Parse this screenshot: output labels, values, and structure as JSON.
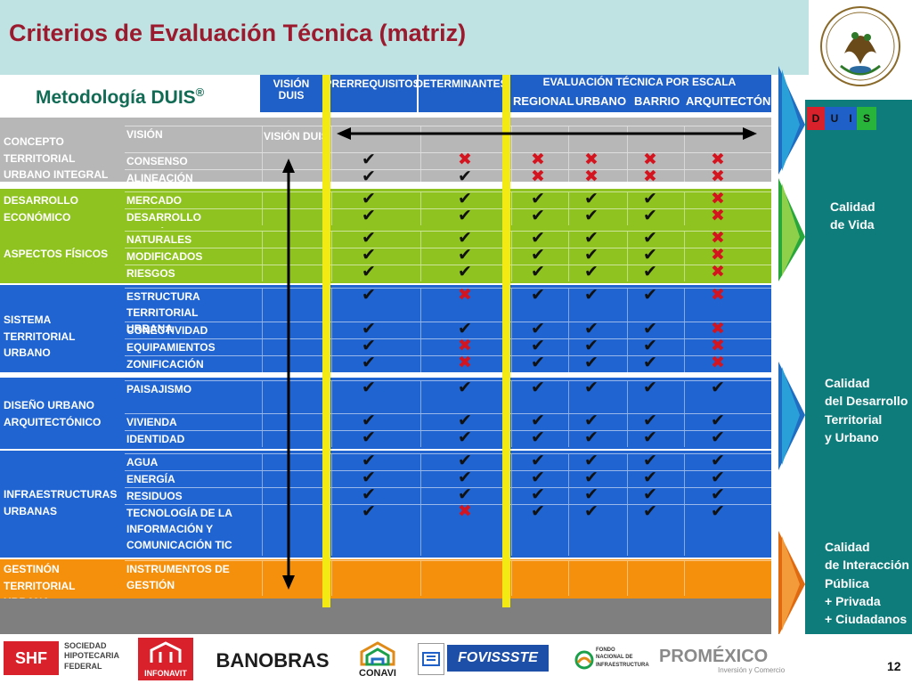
{
  "slide": {
    "title": "Criterios de Evaluación Técnica (matriz)",
    "subtitle_main": "Metodología DUIS",
    "subtitle_mark": "®",
    "page_number": "12"
  },
  "columns": {
    "vision": "VISIÓN DUIS",
    "prerrequisitos": "PRERREQUISITOS",
    "determinantes": "DETERMINANTES",
    "evaluacion": "EVALUACIÓN TÉCNICA POR ESCALA",
    "scales": [
      "REGIONAL",
      "URBANO",
      "BARRIO",
      "ARQUITECTÓNICA"
    ]
  },
  "rows": [
    {
      "category": [
        "CONCEPTO TERRITORIAL",
        "URBANO INTEGRAL"
      ],
      "color": "#b7b7b7",
      "subs": [
        {
          "label": [
            "VISIÓN"
          ],
          "vision_text": "VISIÓN DUIS",
          "marks": []
        },
        {
          "label": [
            "CONSENSO"
          ],
          "marks": [
            "y",
            "n",
            "n",
            "n",
            "n",
            "n"
          ]
        },
        {
          "label": [
            "ALINEACIÓN"
          ],
          "marks": [
            "y",
            "y",
            "n",
            "n",
            "n",
            "n"
          ]
        }
      ]
    },
    {
      "category": [
        "DESARROLLO",
        "ECONÓMICO"
      ],
      "color": "#8fc31f",
      "subs": [
        {
          "label": [
            "MERCADO"
          ],
          "marks": [
            "y",
            "y",
            "y",
            "y",
            "y",
            "n"
          ]
        },
        {
          "label": [
            "DESARROLLO ECONÓMICO"
          ],
          "marks": [
            "y",
            "y",
            "y",
            "y",
            "y",
            "n"
          ]
        }
      ]
    },
    {
      "category": [
        "ASPECTOS FÍSICOS"
      ],
      "color": "#8fc31f",
      "subs": [
        {
          "label": [
            "NATURALES"
          ],
          "marks": [
            "y",
            "y",
            "y",
            "y",
            "y",
            "n"
          ]
        },
        {
          "label": [
            "MODIFICADOS"
          ],
          "marks": [
            "y",
            "y",
            "y",
            "y",
            "y",
            "n"
          ]
        },
        {
          "label": [
            "RIESGOS"
          ],
          "marks": [
            "y",
            "y",
            "y",
            "y",
            "y",
            "n"
          ]
        }
      ]
    },
    {
      "category": [
        "SISTEMA TERRITORIAL",
        "URBANO"
      ],
      "color": "#1f64d0",
      "subs": [
        {
          "label": [
            "ESTRUCTURA TERRITORIAL",
            "URBANA"
          ],
          "marks": [
            "y",
            "n",
            "y",
            "y",
            "y",
            "n"
          ]
        },
        {
          "label": [
            "CONECTIVIDAD"
          ],
          "marks": [
            "y",
            "y",
            "y",
            "y",
            "y",
            "n"
          ]
        },
        {
          "label": [
            "EQUIPAMIENTOS"
          ],
          "marks": [
            "y",
            "n",
            "y",
            "y",
            "y",
            "n"
          ]
        },
        {
          "label": [
            "ZONIFICACIÓN"
          ],
          "marks": [
            "y",
            "n",
            "y",
            "y",
            "y",
            "n"
          ]
        }
      ]
    },
    {
      "category": [
        "DISEÑO URBANO",
        "ARQUITECTÓNICO"
      ],
      "color": "#1f64d0",
      "subs": [
        {
          "label": [
            "PAISAJISMO"
          ],
          "marks": [
            "y",
            "y",
            "y",
            "y",
            "y",
            "y"
          ]
        },
        {
          "label": [
            "VIVIENDA"
          ],
          "marks": [
            "y",
            "y",
            "y",
            "y",
            "y",
            "y"
          ]
        },
        {
          "label": [
            "IDENTIDAD"
          ],
          "marks": [
            "y",
            "y",
            "y",
            "y",
            "y",
            "y"
          ]
        }
      ]
    },
    {
      "category": [
        "INFRAESTRUCTURAS",
        "URBANAS"
      ],
      "color": "#1f64d0",
      "subs": [
        {
          "label": [
            "AGUA"
          ],
          "marks": [
            "y",
            "y",
            "y",
            "y",
            "y",
            "y"
          ]
        },
        {
          "label": [
            "ENERGÍA"
          ],
          "marks": [
            "y",
            "y",
            "y",
            "y",
            "y",
            "y"
          ]
        },
        {
          "label": [
            "RESIDUOS"
          ],
          "marks": [
            "y",
            "y",
            "y",
            "y",
            "y",
            "y"
          ]
        },
        {
          "label": [
            "TECNOLOGÍA DE LA",
            "INFORMACIÓN Y",
            "COMUNICACIÓN TIC"
          ],
          "marks": [
            "y",
            "n",
            "y",
            "y",
            "y",
            "y"
          ]
        }
      ]
    },
    {
      "category": [
        "GESTINÓN TERRITORIAL",
        "URBANA"
      ],
      "color": "#f5900d",
      "subs": [
        {
          "label": [
            "INSTRUMENTOS DE",
            "GESTIÓN"
          ],
          "marks": []
        }
      ]
    }
  ],
  "side_panel": {
    "duis_letters": [
      "D",
      "U",
      "I",
      "S"
    ],
    "labels": [
      [
        "Calidad",
        "de Vida"
      ],
      [
        "Calidad",
        "del Desarrollo",
        "Territorial",
        "y Urbano"
      ],
      [
        "Calidad",
        "de Interacción",
        "Pública",
        "+ Privada",
        "+ Ciudadanos"
      ]
    ]
  },
  "logos": {
    "shf": "SHF",
    "shf_lines": [
      "SOCIEDAD",
      "HIPOTECARIA",
      "FEDERAL"
    ],
    "infonavit": "INFONAVIT",
    "banobras": "BANOBRAS",
    "conavi": "CONAVI",
    "fovissste": "FOVISSSTE",
    "fonadin_lines": [
      "FONDO",
      "NACIONAL DE",
      "INFRAESTRUCTURA"
    ],
    "promexico": "PROMÉXICO",
    "promexico_tag": "Inversión y Comercio"
  },
  "colors": {
    "title": "#9b1a2e",
    "header_blue": "#1f5fc8",
    "grey_row": "#b7b7b7",
    "green_row": "#8fc31f",
    "blue_row": "#1f64d0",
    "orange_row": "#f5900d",
    "teal_panel": "#0f7c7c",
    "yellow_line": "#f2ea12",
    "check": "#111111",
    "cross": "#d4141e"
  }
}
